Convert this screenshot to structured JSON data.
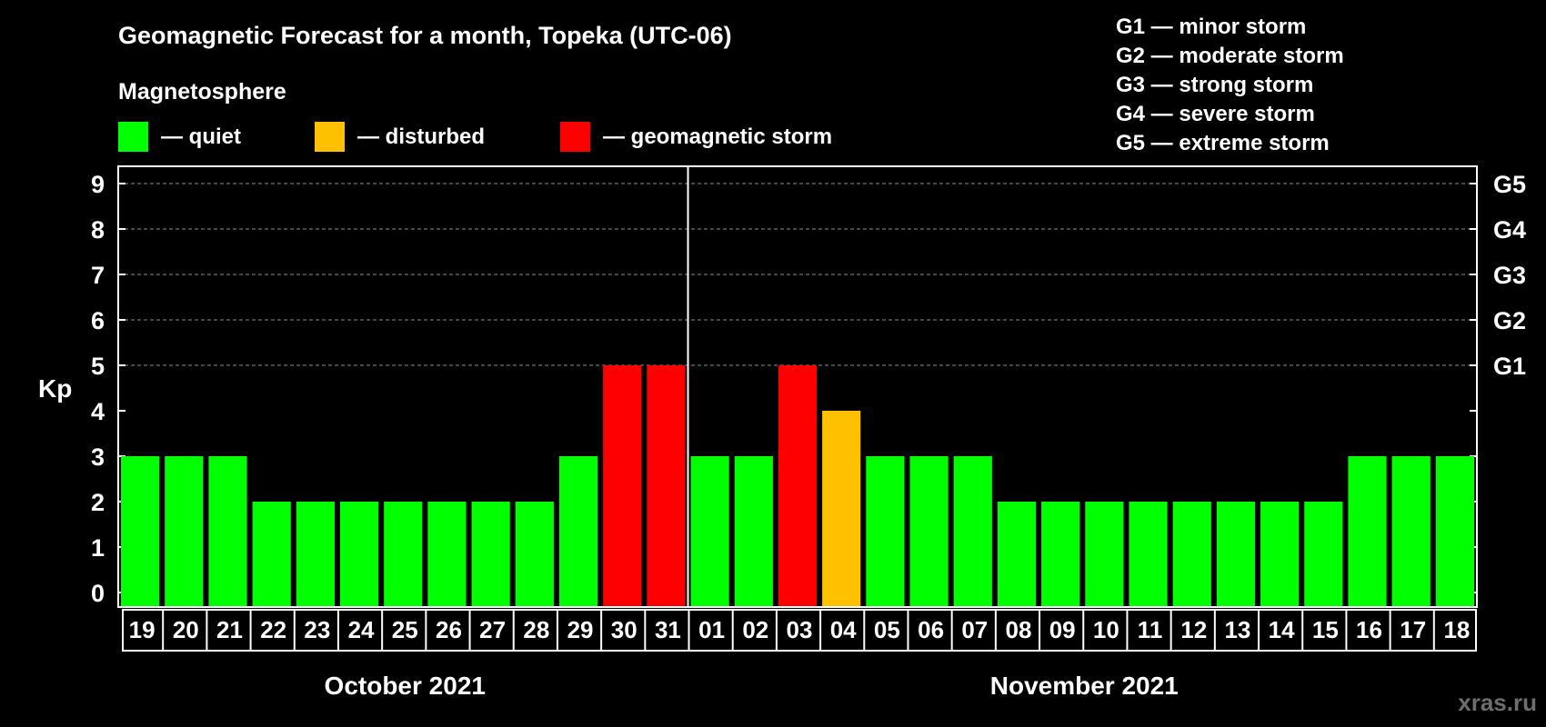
{
  "chart_data": {
    "type": "bar",
    "title": "Geomagnetic Forecast for a month, Topeka (UTC-06)",
    "subtitle": "Magnetosphere",
    "ylabel": "Kp",
    "ylim": [
      0,
      9
    ],
    "yticks": [
      0,
      1,
      2,
      3,
      4,
      5,
      6,
      7,
      8,
      9
    ],
    "grid": "dashed horizontal",
    "legend": [
      {
        "key": "quiet",
        "label": "— quiet",
        "color": "#00ff00"
      },
      {
        "key": "disturbed",
        "label": "— disturbed",
        "color": "#ffc000"
      },
      {
        "key": "storm",
        "label": "— geomagnetic storm",
        "color": "#ff0000"
      }
    ],
    "storm_levels": [
      {
        "kp": 5,
        "label": "G1",
        "description": "G1 — minor storm"
      },
      {
        "kp": 6,
        "label": "G2",
        "description": "G2 — moderate storm"
      },
      {
        "kp": 7,
        "label": "G3",
        "description": "G3 — strong storm"
      },
      {
        "kp": 8,
        "label": "G4",
        "description": "G4 — severe storm"
      },
      {
        "kp": 9,
        "label": "G5",
        "description": "G5 — extreme storm"
      }
    ],
    "categories": [
      "19",
      "20",
      "21",
      "22",
      "23",
      "24",
      "25",
      "26",
      "27",
      "28",
      "29",
      "30",
      "31",
      "01",
      "02",
      "03",
      "04",
      "05",
      "06",
      "07",
      "08",
      "09",
      "10",
      "11",
      "12",
      "13",
      "14",
      "15",
      "16",
      "17",
      "18"
    ],
    "values": [
      3,
      3,
      3,
      2,
      2,
      2,
      2,
      2,
      2,
      2,
      3,
      5,
      5,
      3,
      3,
      5,
      4,
      3,
      3,
      3,
      2,
      2,
      2,
      2,
      2,
      2,
      2,
      2,
      3,
      3,
      3
    ],
    "status": [
      "quiet",
      "quiet",
      "quiet",
      "quiet",
      "quiet",
      "quiet",
      "quiet",
      "quiet",
      "quiet",
      "quiet",
      "quiet",
      "storm",
      "storm",
      "quiet",
      "quiet",
      "storm",
      "disturbed",
      "quiet",
      "quiet",
      "quiet",
      "quiet",
      "quiet",
      "quiet",
      "quiet",
      "quiet",
      "quiet",
      "quiet",
      "quiet",
      "quiet",
      "quiet",
      "quiet"
    ],
    "months": [
      {
        "label": "October 2021",
        "count": 13
      },
      {
        "label": "November 2021",
        "count": 18
      }
    ]
  },
  "watermark": "xras.ru"
}
